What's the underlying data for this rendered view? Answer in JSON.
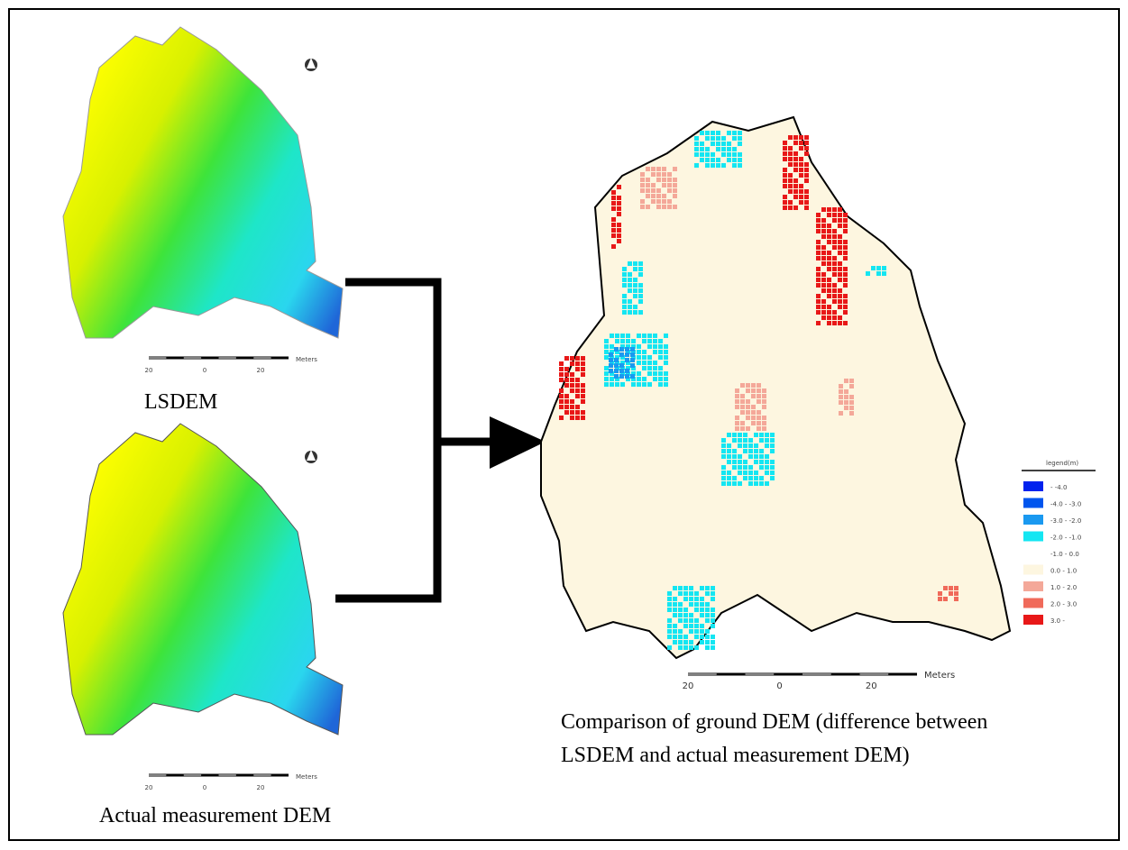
{
  "panels": {
    "lsdem": {
      "label": "LSDEM",
      "scale": {
        "ticks": [
          "20",
          "0",
          "20"
        ],
        "unit": "Meters"
      }
    },
    "actual": {
      "label": "Actual measurement DEM",
      "scale": {
        "ticks": [
          "20",
          "0",
          "20"
        ],
        "unit": "Meters"
      }
    },
    "comparison": {
      "caption_lines": [
        "Comparison of ground DEM (difference between",
        "LSDEM and actual measurement DEM)"
      ],
      "scale": {
        "ticks": [
          "20",
          "0",
          "20"
        ],
        "unit": "Meters"
      },
      "legend": {
        "title": "legend(m)",
        "items": [
          {
            "label": "- -4.0",
            "color": "#0022ee"
          },
          {
            "label": "-4.0 - -3.0",
            "color": "#0055ee"
          },
          {
            "label": "-3.0 - -2.0",
            "color": "#1a99f0"
          },
          {
            "label": "-2.0 - -1.0",
            "color": "#14e6f2"
          },
          {
            "label": "-1.0 - 0.0",
            "color": "#ffffff"
          },
          {
            "label": "0.0 - 1.0",
            "color": "#fdf6e0"
          },
          {
            "label": "1.0 - 2.0",
            "color": "#f4a899"
          },
          {
            "label": "2.0 - 3.0",
            "color": "#f06a5a"
          },
          {
            "label": "3.0 -",
            "color": "#e81818"
          }
        ]
      }
    }
  }
}
